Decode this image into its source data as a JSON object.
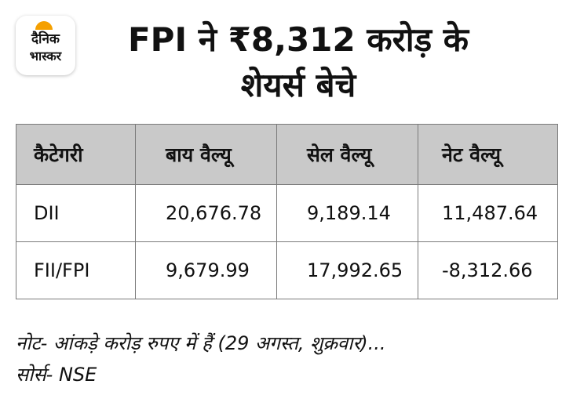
{
  "brand": {
    "logo_line1": "दैनिक",
    "logo_line2": "भास्कर",
    "accent_color": "#f5a000"
  },
  "headline": {
    "line1": "FPI ने ₹8,312 करोड़ के",
    "line2": "शेयर्स बेचे"
  },
  "table": {
    "headers": [
      "कैटेगरी",
      "बाय वैल्यू",
      "सेल वैल्यू",
      "नेट वैल्यू"
    ],
    "rows": [
      {
        "category": "DII",
        "buy": "20,676.78",
        "sell": "9,189.14",
        "net": "11,487.64"
      },
      {
        "category": "FII/FPI",
        "buy": "9,679.99",
        "sell": "17,992.65",
        "net": "-8,312.66"
      }
    ],
    "header_bg": "#c9c9c9"
  },
  "footer": {
    "note": "नोट- आंकड़े करोड़ रुपए में हैं (29 अगस्त, शुक्रवार)...",
    "source": "सोर्स- NSE"
  }
}
